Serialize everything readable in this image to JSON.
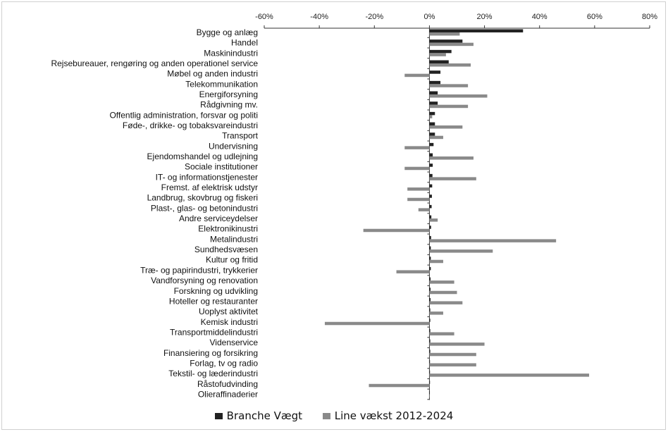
{
  "chart_data": {
    "type": "bar",
    "orientation": "horizontal",
    "title": "",
    "xlabel": "",
    "ylabel": "",
    "xlim": [
      -60,
      80
    ],
    "x_ticks": [
      "-60%",
      "-40%",
      "-20%",
      "0%",
      "20%",
      "40%",
      "60%",
      "80%"
    ],
    "x_tick_values": [
      -60,
      -40,
      -20,
      0,
      20,
      40,
      60,
      80
    ],
    "legend_position": "bottom",
    "categories": [
      "Bygge og anlæg",
      "Handel",
      "Maskinindustri",
      "Rejsebureauer, rengøring og anden operationel service",
      "Møbel og anden industri",
      "Telekommunikation",
      "Energiforsyning",
      "Rådgivning mv.",
      "Offentlig administration, forsvar og politi",
      "Føde-, drikke- og tobaksvareindustri",
      "Transport",
      "Undervisning",
      "Ejendomshandel og udlejning",
      "Sociale institutioner",
      "IT- og informationstjenester",
      "Fremst. af elektrisk udstyr",
      "Landbrug, skovbrug og fiskeri",
      "Plast-, glas- og betonindustri",
      "Andre serviceydelser",
      "Elektronikinustri",
      "Metalindustri",
      "Sundhedsvæsen",
      "Kultur og fritid",
      "Træ- og papirindustri, trykkerier",
      "Vandforsyning og renovation",
      "Forskning og udvikling",
      "Hoteller og restauranter",
      "Uoplyst aktivitet",
      "Kemisk industri",
      "Transportmiddelindustri",
      "Videnservice",
      "Finansiering og forsikring",
      "Forlag, tv og radio",
      "Tekstil- og læderindustri",
      "Råstofudvinding",
      "Olieraffinaderier"
    ],
    "series": [
      {
        "name": "Branche Vægt",
        "color": "#222222",
        "values": [
          34,
          12,
          8,
          7,
          4,
          4,
          3,
          3,
          2,
          2,
          2,
          1.5,
          1.2,
          1.2,
          1.1,
          1,
          0.9,
          0.8,
          0.7,
          0.6,
          0.6,
          0.5,
          0.5,
          0.5,
          0.4,
          0.4,
          0.4,
          0.3,
          0.3,
          0.3,
          0.3,
          0.3,
          0.2,
          0.2,
          0.2,
          0.1
        ]
      },
      {
        "name": "Line vækst 2012-2024",
        "color": "#8a8a8a",
        "values": [
          11,
          16,
          6,
          15,
          -9,
          14,
          21,
          14,
          1,
          12,
          5,
          -9,
          16,
          -9,
          17,
          -8,
          -8,
          -4,
          3,
          -24,
          46,
          23,
          5,
          -12,
          9,
          10,
          12,
          5,
          -38,
          9,
          20,
          17,
          17,
          58,
          -22,
          0
        ]
      }
    ]
  }
}
